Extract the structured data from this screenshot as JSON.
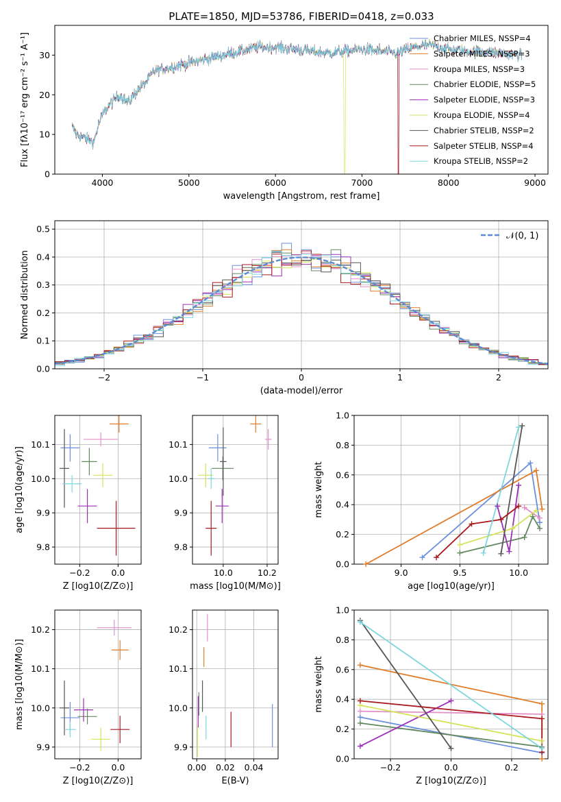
{
  "title": "PLATE=1850, MJD=53786, FIBERID=0418, z=0.033",
  "colors": [
    "#6a8fdc",
    "#e07b28",
    "#e38fc8",
    "#63885f",
    "#9b2fb6",
    "#d4e35a",
    "#555555",
    "#a8191e",
    "#7ed6df"
  ],
  "chart_data": [
    {
      "id": "spectrum",
      "type": "line",
      "title": "PLATE=1850, MJD=53786, FIBERID=0418, z=0.033",
      "xlabel": "wavelength [Angstrom, rest frame]",
      "ylabel": "Flux [fλ10⁻¹⁷ erg cm⁻² s⁻¹ A⁻¹]",
      "xlim": [
        3450,
        9150
      ],
      "ylim": [
        0,
        37.5
      ],
      "xticks": [
        4000,
        5000,
        6000,
        7000,
        8000,
        9000
      ],
      "yticks": [
        0,
        10,
        20,
        30
      ],
      "grid": false,
      "legend_position": "top-right",
      "series": [
        {
          "name": "Chabrier MILES, NSSP=4"
        },
        {
          "name": "Salpeter MILES, NSSP=3"
        },
        {
          "name": "Kroupa MILES, NSSP=3"
        },
        {
          "name": "Chabrier ELODIE, NSSP=5"
        },
        {
          "name": "Salpeter ELODIE, NSSP=3"
        },
        {
          "name": "Kroupa ELODIE, NSSP=4"
        },
        {
          "name": "Chabrier STELIB, NSSP=2"
        },
        {
          "name": "Salpeter STELIB, NSSP=4"
        },
        {
          "name": "Kroupa STELIB, NSSP=2"
        }
      ],
      "continuum": {
        "x": [
          3650,
          3700,
          3800,
          3900,
          3950,
          4000,
          4100,
          4200,
          4300,
          4400,
          4500,
          4600,
          4800,
          5000,
          5200,
          5400,
          5600,
          5800,
          6000,
          6200,
          6400,
          6600,
          6800,
          7000,
          7200,
          7400,
          7600,
          7800,
          8000,
          8200,
          8400,
          8600,
          8850
        ],
        "y": [
          12,
          10,
          9,
          8,
          12,
          15,
          18,
          20,
          18,
          21,
          23,
          26,
          27,
          28,
          29,
          30,
          31,
          32,
          32,
          31.5,
          31,
          30.5,
          31,
          31.5,
          31,
          30.5,
          32,
          32.5,
          31.5,
          31,
          31,
          30.5,
          30
        ]
      },
      "dropouts": [
        {
          "series": "Kroupa ELODIE, NSSP=4",
          "x": 6800
        },
        {
          "series": "Salpeter STELIB, NSSP=4",
          "x": 7420
        },
        {
          "series": "Kroupa MILES, NSSP=3",
          "x": 7420
        }
      ]
    },
    {
      "id": "residuals",
      "type": "line",
      "xlabel": "(data-model)/error",
      "ylabel": "Normed distribution",
      "xlim": [
        -2.5,
        2.5
      ],
      "ylim": [
        0,
        0.53
      ],
      "xticks": [
        -2,
        -1,
        0,
        1,
        2
      ],
      "yticks": [
        0.0,
        0.1,
        0.2,
        0.3,
        0.4,
        0.5
      ],
      "grid": true,
      "legend_position": "top-right",
      "legend": "𝒩(0, 1)",
      "bin_width": 0.1
    },
    {
      "id": "age-vs-Z",
      "type": "scatter",
      "xlabel": "Z [log10(Z/Z⊙)]",
      "ylabel": "age [log10(age/yr)]",
      "xlim": [
        -0.33,
        0.12
      ],
      "ylim": [
        9.75,
        10.185
      ],
      "xticks": [
        -0.2,
        0.0
      ],
      "yticks": [
        9.8,
        9.9,
        10.0,
        10.1
      ],
      "grid": true,
      "points": [
        {
          "c": 0,
          "x": -0.25,
          "y": 10.09,
          "xe": 0.05,
          "ye": 0.04
        },
        {
          "c": 1,
          "x": 0.005,
          "y": 10.16,
          "xe": 0.05,
          "ye": 0.025
        },
        {
          "c": 2,
          "x": -0.09,
          "y": 10.115,
          "xe": 0.09,
          "ye": 0.02
        },
        {
          "c": 3,
          "x": -0.15,
          "y": 10.05,
          "xe": 0.04,
          "ye": 0.04
        },
        {
          "c": 4,
          "x": -0.16,
          "y": 9.92,
          "xe": 0.05,
          "ye": 0.05
        },
        {
          "c": 5,
          "x": -0.08,
          "y": 10.01,
          "xe": 0.05,
          "ye": 0.035
        },
        {
          "c": 6,
          "x": -0.28,
          "y": 10.03,
          "xe": 0.025,
          "ye": 0.115
        },
        {
          "c": 7,
          "x": -0.01,
          "y": 9.855,
          "xe": 0.1,
          "ye": 0.08
        },
        {
          "c": 8,
          "x": -0.24,
          "y": 9.985,
          "xe": 0.05,
          "ye": 0.025
        }
      ]
    },
    {
      "id": "age-vs-mass",
      "type": "scatter",
      "xlabel": "mass [log10(M/M⊙)]",
      "ylabel": "",
      "xlim": [
        9.86,
        10.25
      ],
      "ylim": [
        9.75,
        10.185
      ],
      "xticks": [
        10.0,
        10.2
      ],
      "yticks": [
        9.8,
        9.9,
        10.0,
        10.1
      ],
      "grid": true,
      "points": [
        {
          "c": 0,
          "x": 9.975,
          "y": 10.09,
          "xe": 0.04,
          "ye": 0.04
        },
        {
          "c": 1,
          "x": 10.148,
          "y": 10.16,
          "xe": 0.025,
          "ye": 0.025
        },
        {
          "c": 2,
          "x": 10.205,
          "y": 10.115,
          "xe": 0.015,
          "ye": 0.03
        },
        {
          "c": 3,
          "x": 9.998,
          "y": 10.03,
          "xe": 0.05,
          "ye": 0.035
        },
        {
          "c": 4,
          "x": 9.995,
          "y": 9.92,
          "xe": 0.03,
          "ye": 0.05
        },
        {
          "c": 5,
          "x": 9.92,
          "y": 10.01,
          "xe": 0.035,
          "ye": 0.035
        },
        {
          "c": 6,
          "x": 10.0,
          "y": 10.05,
          "xe": 0.015,
          "ye": 0.1
        },
        {
          "c": 7,
          "x": 9.945,
          "y": 9.855,
          "xe": 0.025,
          "ye": 0.08
        },
        {
          "c": 8,
          "x": 9.945,
          "y": 10.0,
          "xe": 0.015,
          "ye": 0.03
        }
      ]
    },
    {
      "id": "weight-vs-age",
      "type": "line",
      "xlabel": "age [log10(age/yr)]",
      "ylabel": "mass weight",
      "xlim": [
        8.6,
        10.25
      ],
      "ylim": [
        0,
        1.0
      ],
      "xticks": [
        9.0,
        9.5,
        10.0
      ],
      "yticks": [
        0.0,
        0.2,
        0.4,
        0.6,
        0.8,
        1.0
      ],
      "grid": true,
      "series": [
        {
          "c": 0,
          "x": [
            9.18,
            10.1,
            10.18
          ],
          "y": [
            0.045,
            0.68,
            0.28
          ]
        },
        {
          "c": 1,
          "x": [
            8.7,
            10.15,
            10.2
          ],
          "y": [
            0.0,
            0.63,
            0.37
          ]
        },
        {
          "c": 2,
          "x": [
            10.05,
            10.18
          ],
          "y": [
            0.38,
            0.31
          ]
        },
        {
          "c": 3,
          "x": [
            9.5,
            10.05,
            10.12,
            10.18
          ],
          "y": [
            0.075,
            0.18,
            0.32,
            0.24
          ]
        },
        {
          "c": 4,
          "x": [
            9.82,
            9.92,
            10.0
          ],
          "y": [
            0.39,
            0.085,
            0.53
          ]
        },
        {
          "c": 5,
          "x": [
            9.5,
            9.95,
            10.15
          ],
          "y": [
            0.13,
            0.24,
            0.36
          ]
        },
        {
          "c": 6,
          "x": [
            9.85,
            10.03
          ],
          "y": [
            0.07,
            0.93
          ]
        },
        {
          "c": 7,
          "x": [
            9.3,
            9.6,
            9.85,
            10.0
          ],
          "y": [
            0.045,
            0.27,
            0.3,
            0.39
          ]
        },
        {
          "c": 8,
          "x": [
            9.7,
            10.0
          ],
          "y": [
            0.075,
            0.92
          ]
        }
      ]
    },
    {
      "id": "mass-vs-Z",
      "type": "scatter",
      "xlabel": "Z [log10(Z/Z⊙)]",
      "ylabel": "mass [log10(M/M⊙)]",
      "xlim": [
        -0.33,
        0.12
      ],
      "ylim": [
        9.87,
        10.25
      ],
      "xticks": [
        -0.2,
        0.0
      ],
      "yticks": [
        9.9,
        10.0,
        10.1,
        10.2
      ],
      "grid": true,
      "points": [
        {
          "c": 0,
          "x": -0.25,
          "y": 9.975,
          "xe": 0.05,
          "ye": 0.04
        },
        {
          "c": 1,
          "x": 0.01,
          "y": 10.148,
          "xe": 0.045,
          "ye": 0.025
        },
        {
          "c": 2,
          "x": -0.02,
          "y": 10.205,
          "xe": 0.09,
          "ye": 0.02
        },
        {
          "c": 3,
          "x": -0.16,
          "y": 9.978,
          "xe": 0.05,
          "ye": 0.02
        },
        {
          "c": 4,
          "x": -0.18,
          "y": 9.995,
          "xe": 0.05,
          "ye": 0.03
        },
        {
          "c": 5,
          "x": -0.09,
          "y": 9.92,
          "xe": 0.05,
          "ye": 0.03
        },
        {
          "c": 6,
          "x": -0.28,
          "y": 10.0,
          "xe": 0.025,
          "ye": 0.07
        },
        {
          "c": 7,
          "x": 0.01,
          "y": 9.945,
          "xe": 0.05,
          "ye": 0.035
        },
        {
          "c": 8,
          "x": -0.25,
          "y": 9.945,
          "xe": 0.03,
          "ye": 0.02
        }
      ]
    },
    {
      "id": "mass-vs-EBV",
      "type": "scatter",
      "xlabel": "E(B-V)",
      "ylabel": "",
      "xlim": [
        -0.003,
        0.057
      ],
      "ylim": [
        9.87,
        10.25
      ],
      "xticks": [
        0.0,
        0.02,
        0.04
      ],
      "yticks": [
        9.9,
        10.0,
        10.1,
        10.2
      ],
      "grid": true,
      "points": [
        {
          "c": 0,
          "x": 0.053,
          "y": 9.955,
          "xe": 0,
          "ye": 0.055
        },
        {
          "c": 1,
          "x": 0.005,
          "y": 10.13,
          "xe": 0,
          "ye": 0.025
        },
        {
          "c": 2,
          "x": 0.0075,
          "y": 10.205,
          "xe": 0,
          "ye": 0.035
        },
        {
          "c": 3,
          "x": 0.0015,
          "y": 10.01,
          "xe": 0,
          "ye": 0.03
        },
        {
          "c": 4,
          "x": 0.001,
          "y": 9.99,
          "xe": 0,
          "ye": 0.04
        },
        {
          "c": 5,
          "x": 0.0005,
          "y": 9.915,
          "xe": 0,
          "ye": 0.04
        },
        {
          "c": 6,
          "x": 0.004,
          "y": 10.03,
          "xe": 0,
          "ye": 0.04
        },
        {
          "c": 7,
          "x": 0.024,
          "y": 9.945,
          "xe": 0,
          "ye": 0.045
        },
        {
          "c": 8,
          "x": 0.0065,
          "y": 9.95,
          "xe": 0,
          "ye": 0.03
        }
      ]
    },
    {
      "id": "weight-vs-Z",
      "type": "line",
      "xlabel": "Z [log10(Z/Z⊙)]",
      "ylabel": "mass weight",
      "xlim": [
        -0.32,
        0.32
      ],
      "ylim": [
        0,
        1.0
      ],
      "xticks": [
        -0.2,
        0.0,
        0.2
      ],
      "yticks": [
        0.0,
        0.2,
        0.4,
        0.6,
        0.8,
        1.0
      ],
      "grid": true,
      "series": [
        {
          "c": 0,
          "x": [
            -0.3,
            0.3
          ],
          "y": [
            0.28,
            0.04
          ]
        },
        {
          "c": 1,
          "x": [
            -0.3,
            0.3,
            0.3
          ],
          "y": [
            0.63,
            0.37,
            0.0
          ]
        },
        {
          "c": 2,
          "x": [
            -0.3,
            0.3
          ],
          "y": [
            0.32,
            0.3
          ]
        },
        {
          "c": 3,
          "x": [
            -0.3,
            0.3
          ],
          "y": [
            0.24,
            0.08
          ]
        },
        {
          "c": 4,
          "x": [
            -0.3,
            0.0
          ],
          "y": [
            0.085,
            0.39
          ]
        },
        {
          "c": 5,
          "x": [
            -0.3,
            0.3
          ],
          "y": [
            0.36,
            0.12
          ]
        },
        {
          "c": 6,
          "x": [
            -0.3,
            0.0
          ],
          "y": [
            0.93,
            0.07
          ]
        },
        {
          "c": 7,
          "x": [
            -0.3,
            0.3,
            0.3
          ],
          "y": [
            0.39,
            0.27,
            0.045
          ]
        },
        {
          "c": 8,
          "x": [
            -0.3,
            0.3
          ],
          "y": [
            0.92,
            0.07
          ]
        }
      ]
    }
  ]
}
